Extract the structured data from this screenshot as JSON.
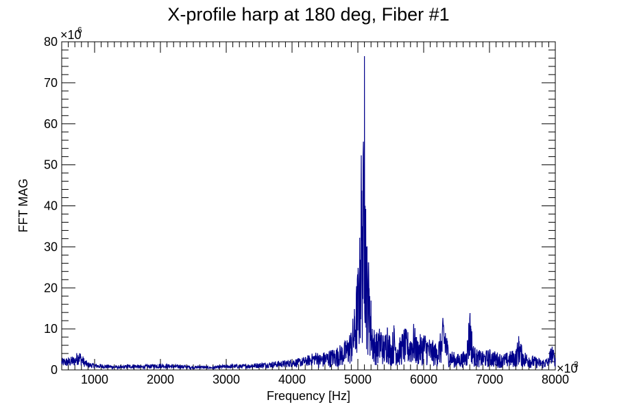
{
  "chart_data": {
    "type": "line",
    "title": "X-profile harp at 180 deg, Fiber #1",
    "xlabel": "Frequency [Hz]",
    "ylabel": "FFT MAG",
    "x_multiplier_label": "×10",
    "x_multiplier_exp": "3",
    "y_multiplier_label": "×10",
    "y_multiplier_exp": "6",
    "xlim": [
      500,
      8000
    ],
    "ylim": [
      0,
      80
    ],
    "x_units_note": "kHz (axis labels shown ×10^3)",
    "y_units_note": "millions (axis labels shown ×10^6)",
    "xticks": [
      1000,
      2000,
      3000,
      4000,
      5000,
      6000,
      7000,
      8000
    ],
    "yticks": [
      0,
      10,
      20,
      30,
      40,
      50,
      60,
      70,
      80
    ],
    "grid": false,
    "line_color": "#00008b",
    "series": [
      {
        "x": [
          500,
          600,
          700,
          760,
          800,
          850,
          900,
          1000,
          1100,
          1200,
          1300,
          1400,
          1500,
          1600,
          1700,
          1800,
          1900,
          2000,
          2100,
          2200,
          2300,
          2400,
          2500,
          2600,
          2700,
          2800,
          2900,
          3000,
          3100,
          3200,
          3300,
          3400,
          3500,
          3600,
          3700,
          3800,
          3900,
          4000,
          4100,
          4200,
          4300,
          4400,
          4500,
          4600,
          4700,
          4800,
          4850,
          4900,
          4950,
          5000,
          5030,
          5050,
          5070,
          5090,
          5100,
          5110,
          5120,
          5130,
          5140,
          5160,
          5180,
          5200,
          5220,
          5250,
          5300,
          5350,
          5400,
          5450,
          5500,
          5550,
          5600,
          5700,
          5800,
          5850,
          5900,
          6000,
          6100,
          6200,
          6280,
          6300,
          6330,
          6360,
          6400,
          6500,
          6600,
          6650,
          6700,
          6720,
          6750,
          6800,
          6900,
          7000,
          7100,
          7200,
          7300,
          7400,
          7450,
          7500,
          7600,
          7700,
          7800,
          7900,
          7950,
          8000
        ],
        "y": [
          1.8,
          1.9,
          2.2,
          3.2,
          2.5,
          1.7,
          1.2,
          1.0,
          0.9,
          0.8,
          0.7,
          0.6,
          0.8,
          0.9,
          0.7,
          0.8,
          0.9,
          1.0,
          0.9,
          0.8,
          0.8,
          0.7,
          0.6,
          0.7,
          0.6,
          0.5,
          0.7,
          0.8,
          0.9,
          0.8,
          0.9,
          1.0,
          1.1,
          1.2,
          1.3,
          1.4,
          1.5,
          1.7,
          1.8,
          2.0,
          2.5,
          3.0,
          3.5,
          4.0,
          4.5,
          5.5,
          6.5,
          8.0,
          12.0,
          20.0,
          26.0,
          45.0,
          35.0,
          49.0,
          76.5,
          40.0,
          38.0,
          30.0,
          25.0,
          22.0,
          18.0,
          14.0,
          10.0,
          8.0,
          7.0,
          9.0,
          6.0,
          10.0,
          5.5,
          9.0,
          5.0,
          8.0,
          7.0,
          9.0,
          6.0,
          7.5,
          6.0,
          5.0,
          8.0,
          11.0,
          9.0,
          6.0,
          4.0,
          3.0,
          3.5,
          4.0,
          12.5,
          10.0,
          5.0,
          4.0,
          3.5,
          4.0,
          3.5,
          3.0,
          3.5,
          4.0,
          7.0,
          4.0,
          3.0,
          2.5,
          2.0,
          2.5,
          4.0,
          2.0
        ]
      }
    ]
  }
}
